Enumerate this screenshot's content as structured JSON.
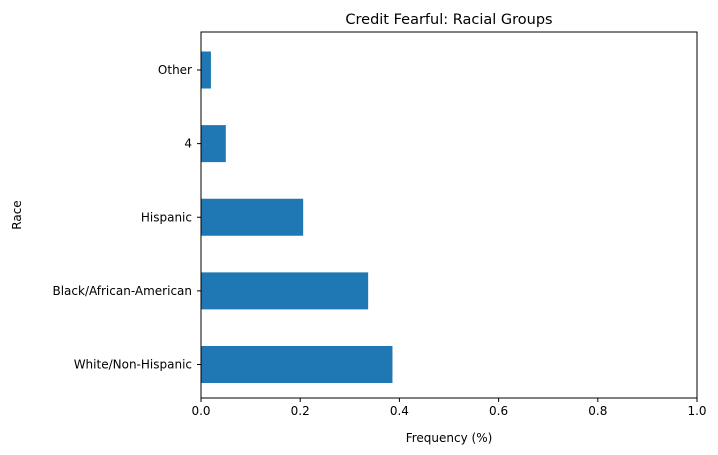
{
  "chart_data": {
    "type": "bar",
    "orientation": "horizontal",
    "title": "Credit Fearful: Racial Groups",
    "xlabel": "Frequency (%)",
    "ylabel": "Race",
    "categories": [
      "White/Non-Hispanic",
      "Black/African-American",
      "Hispanic",
      "4",
      "Other"
    ],
    "values": [
      0.386,
      0.337,
      0.206,
      0.05,
      0.02
    ],
    "xlim": [
      0,
      1.0
    ],
    "xticks": [
      0.0,
      0.2,
      0.4,
      0.6,
      0.8,
      1.0
    ],
    "xtick_labels": [
      "0.0",
      "0.2",
      "0.4",
      "0.6",
      "0.8",
      "1.0"
    ],
    "grid": false,
    "legend": false,
    "colors": {
      "bar": "#1f77b4",
      "axis": "#000000"
    }
  }
}
